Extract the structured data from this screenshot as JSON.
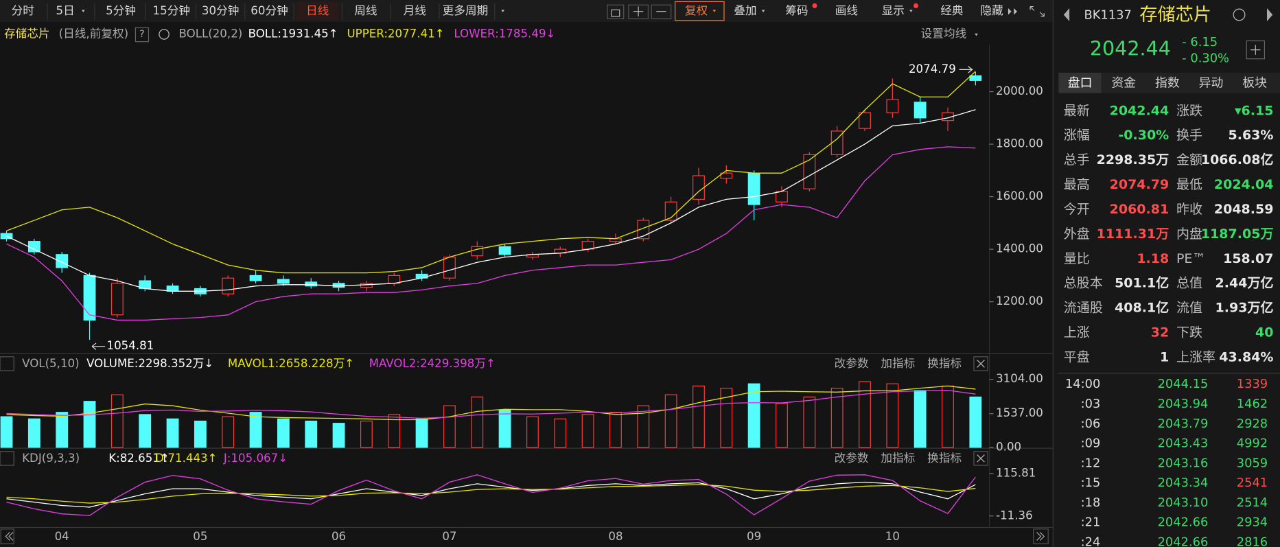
{
  "toolbar": {
    "left": [
      "分时",
      "5日",
      "5分钟",
      "15分钟",
      "30分钟",
      "60分钟",
      "日线",
      "周线",
      "月线",
      "更多周期"
    ],
    "right": [
      "复权",
      "叠加",
      "筹码",
      "画线",
      "显示",
      "经典",
      "隐藏"
    ]
  },
  "main_legend": {
    "name": "存储芯片",
    "mode": "(日线,前复权)",
    "help": "?",
    "indicator": "BOLL(20,2)",
    "boll": "BOLL:1931.45↑",
    "upper": "UPPER:2077.41↑",
    "lower": "LOWER:1785.49↓",
    "settings": "设置均线"
  },
  "vol_legend": {
    "indicator": "VOL(5,10)",
    "volume": "VOLUME:2298.352万↓",
    "mavol1": "MAVOL1:2658.228万↑",
    "mavol2": "MAVOL2:2429.398万↑"
  },
  "kdj_legend": {
    "indicator": "KDJ(9,3,3)",
    "k": "K:82.651↑",
    "d": "D:71.443↑",
    "j": "J:105.067↓"
  },
  "panel_actions": [
    "改参数",
    "加指标",
    "换指标"
  ],
  "chart_data": [
    {
      "type": "candlestick",
      "categories": [
        null,
        null,
        "04",
        null,
        null,
        null,
        null,
        "05",
        null,
        null,
        null,
        null,
        "06",
        null,
        null,
        null,
        "07",
        null,
        null,
        null,
        null,
        null,
        "08",
        null,
        null,
        null,
        null,
        "09",
        null,
        null,
        null,
        null,
        "10",
        null,
        null,
        null
      ],
      "open": [
        1460,
        1430,
        1380,
        1300,
        1150,
        1280,
        1260,
        1250,
        1230,
        1300,
        1285,
        1275,
        1270,
        1255,
        1270,
        1305,
        1290,
        1375,
        1410,
        1370,
        1385,
        1400,
        1430,
        1440,
        1510,
        1590,
        1670,
        1690,
        1580,
        1630,
        1760,
        1860,
        1920,
        1960,
        1890,
        2060.81
      ],
      "high": [
        1470,
        1440,
        1390,
        1310,
        1290,
        1300,
        1270,
        1260,
        1300,
        1320,
        1300,
        1290,
        1280,
        1280,
        1310,
        1320,
        1380,
        1430,
        1420,
        1390,
        1410,
        1440,
        1460,
        1520,
        1600,
        1710,
        1720,
        1700,
        1640,
        1770,
        1870,
        1930,
        2050,
        1980,
        1940,
        2074.79
      ],
      "low": [
        1430,
        1380,
        1310,
        1054.81,
        1140,
        1240,
        1230,
        1220,
        1220,
        1270,
        1260,
        1250,
        1240,
        1240,
        1260,
        1280,
        1280,
        1360,
        1370,
        1360,
        1370,
        1390,
        1420,
        1430,
        1500,
        1570,
        1650,
        1510,
        1560,
        1620,
        1750,
        1850,
        1900,
        1880,
        1850,
        2024.04
      ],
      "close": [
        1440,
        1390,
        1330,
        1130,
        1270,
        1250,
        1240,
        1230,
        1290,
        1280,
        1270,
        1260,
        1255,
        1270,
        1300,
        1290,
        1370,
        1410,
        1380,
        1380,
        1400,
        1430,
        1440,
        1510,
        1580,
        1680,
        1690,
        1570,
        1620,
        1760,
        1850,
        1920,
        1970,
        1900,
        1920,
        2042.44
      ],
      "up_color": "#ff3b3b",
      "down_color": "#54fcfc",
      "series": [
        {
          "color": "#e6e600",
          "values": [
            1470,
            1510,
            1550,
            1560,
            1520,
            1470,
            1420,
            1380,
            1340,
            1320,
            1310,
            1310,
            1310,
            1310,
            1315,
            1330,
            1370,
            1400,
            1420,
            1430,
            1440,
            1445,
            1440,
            1480,
            1520,
            1620,
            1700,
            1690,
            1690,
            1740,
            1820,
            1930,
            2030,
            1980,
            1980,
            2077.41
          ]
        },
        {
          "color": "#ffffff",
          "values": [
            1450,
            1400,
            1350,
            1300,
            1280,
            1250,
            1240,
            1240,
            1245,
            1260,
            1265,
            1265,
            1260,
            1265,
            1270,
            1290,
            1320,
            1350,
            1370,
            1380,
            1385,
            1400,
            1420,
            1450,
            1500,
            1560,
            1590,
            1600,
            1620,
            1680,
            1740,
            1800,
            1870,
            1880,
            1900,
            1931.45
          ]
        },
        {
          "color": "#e43ee4",
          "values": [
            1420,
            1370,
            1280,
            1150,
            1130,
            1130,
            1135,
            1140,
            1150,
            1200,
            1220,
            1230,
            1230,
            1235,
            1235,
            1245,
            1260,
            1270,
            1300,
            1320,
            1330,
            1340,
            1340,
            1350,
            1360,
            1400,
            1460,
            1550,
            1570,
            1560,
            1520,
            1660,
            1760,
            1780,
            1790,
            1785.49
          ]
        }
      ],
      "ylim": [
        1006,
        2178
      ],
      "yticks": [
        {
          "value": 1200,
          "label": "1200.00"
        },
        {
          "value": 1400,
          "label": "1400.00"
        },
        {
          "value": 1600,
          "label": "1600.00"
        },
        {
          "value": 1800,
          "label": "1800.00"
        },
        {
          "value": 2000,
          "label": "2000.00"
        }
      ]
    },
    {
      "type": "bar",
      "values": [
        1400,
        1300,
        1600,
        2100,
        2400,
        1500,
        1300,
        1200,
        1400,
        1600,
        1300,
        1200,
        1100,
        1200,
        1500,
        1300,
        1900,
        2300,
        1700,
        1400,
        1300,
        1500,
        1600,
        1900,
        2400,
        2800,
        2700,
        2900,
        2000,
        2300,
        2700,
        3000,
        2900,
        2600,
        2800,
        2298.352
      ],
      "series": [
        {
          "color": "#e6e600",
          "values": [
            1500,
            1450,
            1420,
            1560,
            1760,
            1980,
            1900,
            1700,
            1560,
            1400,
            1360,
            1340,
            1320,
            1300,
            1260,
            1260,
            1400,
            1640,
            1740,
            1720,
            1720,
            1640,
            1500,
            1560,
            1740,
            2040,
            2280,
            2540,
            2560,
            2540,
            2520,
            2580,
            2580,
            2700,
            2800,
            2658.228
          ]
        },
        {
          "color": "#e43ee4",
          "values": [
            1550,
            1500,
            1460,
            1480,
            1560,
            1680,
            1700,
            1640,
            1660,
            1690,
            1670,
            1620,
            1510,
            1420,
            1380,
            1330,
            1380,
            1480,
            1530,
            1520,
            1560,
            1600,
            1570,
            1640,
            1730,
            1880,
            2010,
            2040,
            2030,
            2140,
            2300,
            2430,
            2540,
            2580,
            2600,
            2429.398
          ]
        }
      ],
      "ylim": [
        0,
        3350
      ],
      "yticks": [
        {
          "value": 0,
          "label": "0.00"
        },
        {
          "value": 1537,
          "label": "1537.00"
        },
        {
          "value": 3104,
          "label": "3104.00"
        }
      ]
    },
    {
      "type": "line",
      "series": [
        {
          "color": "#ffffff",
          "values": [
            40,
            30,
            20,
            15,
            35,
            55,
            70,
            70,
            60,
            50,
            45,
            40,
            55,
            70,
            60,
            50,
            70,
            85,
            75,
            65,
            70,
            80,
            85,
            80,
            85,
            88,
            70,
            40,
            55,
            75,
            85,
            90,
            85,
            60,
            40,
            82.651
          ]
        },
        {
          "color": "#e6e600",
          "values": [
            45,
            40,
            33,
            27,
            30,
            38,
            48,
            55,
            57,
            55,
            52,
            48,
            50,
            57,
            58,
            55,
            60,
            68,
            70,
            68,
            69,
            73,
            77,
            78,
            80,
            83,
            78,
            66,
            62,
            66,
            72,
            78,
            80,
            73,
            62,
            71.443
          ]
        },
        {
          "color": "#e43ee4",
          "values": [
            30,
            10,
            -5,
            -10,
            45,
            90,
            110,
            100,
            66,
            40,
            31,
            24,
            65,
            96,
            64,
            40,
            90,
            112,
            85,
            59,
            72,
            94,
            101,
            84,
            95,
            98,
            54,
            -8,
            41,
            93,
            111,
            112,
            95,
            34,
            -4,
            105.067
          ]
        }
      ],
      "ylim": [
        -30.9,
        135.4
      ],
      "yticks": [
        -11.36,
        115.81
      ]
    }
  ],
  "quote": {
    "code": "BK1137",
    "name": "存储芯片",
    "price": "2042.44",
    "change": "- 6.15",
    "pct": "- 0.30%",
    "tabs": [
      "盘口",
      "资金",
      "指数",
      "异动",
      "板块"
    ],
    "rows": [
      [
        {
          "label": "最新",
          "value": "2042.44",
          "color": "#3ddc6a"
        },
        {
          "label": "涨跌",
          "value": "▾6.15",
          "color": "#3ddc6a"
        }
      ],
      [
        {
          "label": "涨幅",
          "value": "-0.30%",
          "color": "#3ddc6a"
        },
        {
          "label": "换手",
          "value": "5.63%",
          "color": "#e8e8e8"
        }
      ],
      [
        {
          "label": "总手",
          "value": "2298.35万",
          "color": "#e8e8e8"
        },
        {
          "label": "金额",
          "value": "1066.08亿",
          "color": "#e8e8e8"
        }
      ],
      [
        {
          "label": "最高",
          "value": "2074.79",
          "color": "#ff4d4d"
        },
        {
          "label": "最低",
          "value": "2024.04",
          "color": "#3ddc6a"
        }
      ],
      [
        {
          "label": "今开",
          "value": "2060.81",
          "color": "#ff4d4d"
        },
        {
          "label": "昨收",
          "value": "2048.59",
          "color": "#e8e8e8"
        }
      ],
      [
        {
          "label": "外盘",
          "value": "1111.31万",
          "color": "#ff4d4d"
        },
        {
          "label": "内盘",
          "value": "1187.05万",
          "color": "#3ddc6a"
        }
      ],
      [
        {
          "label": "量比",
          "value": "1.18",
          "color": "#ff4d4d"
        },
        {
          "label": "PE™",
          "value": "158.07",
          "color": "#e8e8e8"
        }
      ],
      [
        {
          "label": "总股本",
          "value": "501.1亿",
          "color": "#e8e8e8"
        },
        {
          "label": "总值",
          "value": "2.44万亿",
          "color": "#e8e8e8"
        }
      ],
      [
        {
          "label": "流通股",
          "value": "408.1亿",
          "color": "#e8e8e8"
        },
        {
          "label": "流值",
          "value": "1.93万亿",
          "color": "#e8e8e8"
        }
      ],
      [
        {
          "label": "上涨",
          "value": "32",
          "color": "#ff4d4d"
        },
        {
          "label": "下跌",
          "value": "40",
          "color": "#3ddc6a"
        }
      ],
      [
        {
          "label": "平盘",
          "value": "1",
          "color": "#e8e8e8"
        },
        {
          "label": "上涨率",
          "value": "43.84%",
          "color": "#e8e8e8"
        }
      ]
    ],
    "trades": [
      {
        "time": "14:00",
        "price": "2044.15",
        "volume": "1339",
        "color": "#ff4d4d"
      },
      {
        "time": ":03",
        "price": "2043.94",
        "volume": "1462",
        "color": "#3ddc6a"
      },
      {
        "time": ":06",
        "price": "2043.79",
        "volume": "2928",
        "color": "#3ddc6a"
      },
      {
        "time": ":09",
        "price": "2043.43",
        "volume": "4992",
        "color": "#3ddc6a"
      },
      {
        "time": ":12",
        "price": "2043.16",
        "volume": "3059",
        "color": "#3ddc6a"
      },
      {
        "time": ":15",
        "price": "2043.34",
        "volume": "2541",
        "color": "#ff4d4d"
      },
      {
        "time": ":18",
        "price": "2043.10",
        "volume": "2514",
        "color": "#3ddc6a"
      },
      {
        "time": ":21",
        "price": "2042.66",
        "volume": "2934",
        "color": "#3ddc6a"
      },
      {
        "time": ":24",
        "price": "2042.66",
        "volume": "2816",
        "color": "#3ddc6a"
      }
    ]
  }
}
